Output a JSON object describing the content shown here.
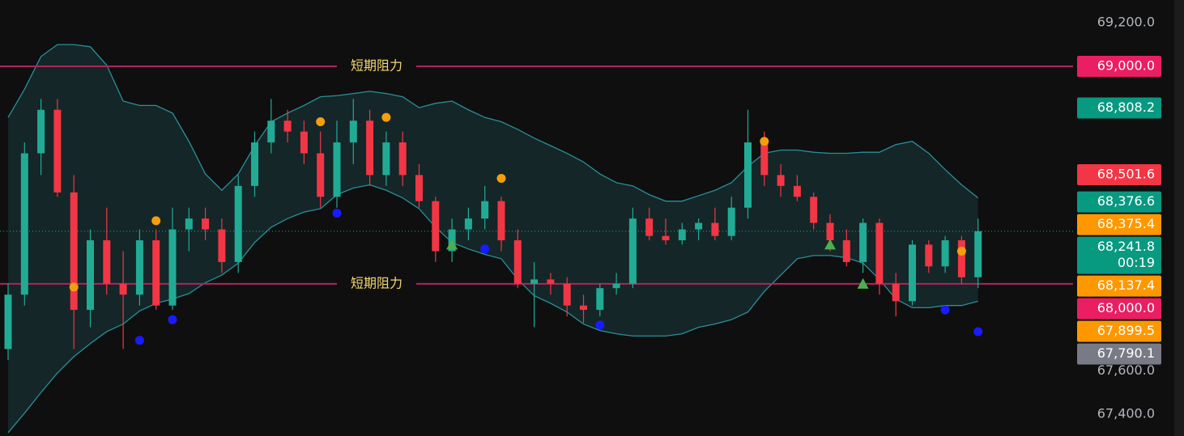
{
  "chart_data": {
    "type": "candlestick",
    "ylim": [
      67300,
      69305
    ],
    "yticks": [
      {
        "value": 69200,
        "label": "69,200.0"
      },
      {
        "value": 67600,
        "label": "67,600.0"
      },
      {
        "value": 67400,
        "label": "67,400.0"
      }
    ],
    "up_color": "#22ab94",
    "down_color": "#f23645",
    "open": [
      67700,
      67950,
      68600,
      68800,
      68420,
      67880,
      68200,
      68000,
      67950,
      68200,
      67900,
      68250,
      68300,
      68250,
      68100,
      68450,
      68650,
      68750,
      68700,
      68600,
      68400,
      68650,
      68750,
      68500,
      68650,
      68500,
      68380,
      68150,
      68250,
      68300,
      68380,
      68200,
      68000,
      68020,
      68000,
      67900,
      67880,
      67980,
      68000,
      68300,
      68220,
      68200,
      68250,
      68280,
      68220,
      68350,
      68650,
      68500,
      68450,
      68400,
      68280,
      68200,
      68100,
      68280,
      68000,
      67920,
      68180,
      68080,
      68200,
      68030
    ],
    "high": [
      68000,
      68650,
      68850,
      68850,
      68500,
      68250,
      68350,
      68150,
      68250,
      68250,
      68350,
      68350,
      68350,
      68300,
      68500,
      68700,
      68850,
      68800,
      68750,
      68700,
      68750,
      68850,
      68800,
      68700,
      68700,
      68550,
      68400,
      68300,
      68350,
      68450,
      68400,
      68250,
      68100,
      68050,
      68030,
      67950,
      68000,
      68050,
      68350,
      68350,
      68300,
      68280,
      68300,
      68350,
      68400,
      68800,
      68700,
      68550,
      68500,
      68420,
      68320,
      68250,
      68300,
      68300,
      68050,
      68200,
      68200,
      68220,
      68220,
      68300
    ],
    "low": [
      67650,
      67900,
      68500,
      68400,
      67700,
      67800,
      67950,
      67700,
      67900,
      67880,
      67880,
      68150,
      68200,
      68050,
      68050,
      68400,
      68600,
      68650,
      68550,
      68350,
      68350,
      68550,
      68450,
      68450,
      68450,
      68350,
      68100,
      68100,
      68200,
      68250,
      68150,
      67980,
      67800,
      67950,
      67850,
      67820,
      67850,
      67950,
      67980,
      68200,
      68180,
      68180,
      68200,
      68200,
      68200,
      68300,
      68450,
      68400,
      68380,
      68250,
      68150,
      68080,
      68050,
      67950,
      67850,
      67900,
      68050,
      68050,
      68000,
      67980
    ],
    "close": [
      67950,
      68600,
      68800,
      68420,
      67880,
      68200,
      68000,
      67950,
      68200,
      67900,
      68250,
      68300,
      68250,
      68100,
      68450,
      68650,
      68750,
      68700,
      68600,
      68400,
      68650,
      68750,
      68500,
      68650,
      68500,
      68380,
      68150,
      68250,
      68300,
      68380,
      68200,
      68000,
      68020,
      68000,
      67900,
      67880,
      67980,
      68000,
      68300,
      68220,
      68200,
      68250,
      68280,
      68220,
      68350,
      68650,
      68500,
      68450,
      68400,
      68280,
      68200,
      68100,
      68280,
      68000,
      67920,
      68180,
      68080,
      68200,
      68030,
      68241.8
    ],
    "bands": {
      "color": "#2a8f99",
      "fill": "rgba(42,143,153,0.18)",
      "upper": [
        68765,
        68895,
        69045,
        69100,
        69100,
        69090,
        69005,
        68840,
        68820,
        68820,
        68785,
        68655,
        68505,
        68430,
        68505,
        68635,
        68745,
        68785,
        68820,
        68860,
        68865,
        68875,
        68885,
        68875,
        68860,
        68810,
        68830,
        68840,
        68800,
        68765,
        68745,
        68710,
        68670,
        68635,
        68600,
        68560,
        68505,
        68465,
        68450,
        68410,
        68380,
        68380,
        68405,
        68430,
        68465,
        68540,
        68600,
        68615,
        68615,
        68605,
        68600,
        68600,
        68605,
        68605,
        68640,
        68655,
        68600,
        68525,
        68455,
        68395
      ],
      "lower": [
        67315,
        67405,
        67500,
        67590,
        67665,
        67725,
        67780,
        67815,
        67875,
        67910,
        67930,
        67955,
        68005,
        68040,
        68095,
        68190,
        68260,
        68300,
        68330,
        68345,
        68410,
        68440,
        68455,
        68430,
        68395,
        68345,
        68260,
        68190,
        68160,
        68135,
        68115,
        68020,
        67945,
        67910,
        67870,
        67815,
        67785,
        67770,
        67760,
        67760,
        67760,
        67770,
        67800,
        67815,
        67835,
        67870,
        67965,
        68040,
        68115,
        68130,
        68130,
        68120,
        68095,
        68020,
        67930,
        67890,
        67890,
        67900,
        67900,
        67920
      ]
    },
    "markers": [
      {
        "index": 4,
        "value": 67985,
        "color": "#f59e0b",
        "shape": "dot"
      },
      {
        "index": 9,
        "value": 68290,
        "color": "#f59e0b",
        "shape": "dot"
      },
      {
        "index": 19,
        "value": 68745,
        "color": "#f59e0b",
        "shape": "dot"
      },
      {
        "index": 23,
        "value": 68765,
        "color": "#f59e0b",
        "shape": "dot"
      },
      {
        "index": 30,
        "value": 68485,
        "color": "#f59e0b",
        "shape": "dot"
      },
      {
        "index": 46,
        "value": 68655,
        "color": "#f59e0b",
        "shape": "dot"
      },
      {
        "index": 58,
        "value": 68150,
        "color": "#f59e0b",
        "shape": "dot"
      },
      {
        "index": 8,
        "value": 67740,
        "color": "#1a1aff",
        "shape": "dot"
      },
      {
        "index": 10,
        "value": 67835,
        "color": "#1a1aff",
        "shape": "dot"
      },
      {
        "index": 20,
        "value": 68325,
        "color": "#1a1aff",
        "shape": "dot"
      },
      {
        "index": 29,
        "value": 68160,
        "color": "#1a1aff",
        "shape": "dot"
      },
      {
        "index": 36,
        "value": 67810,
        "color": "#1a1aff",
        "shape": "dot"
      },
      {
        "index": 57,
        "value": 67880,
        "color": "#1a1aff",
        "shape": "dot"
      },
      {
        "index": 59,
        "value": 67780,
        "color": "#1a1aff",
        "shape": "dot"
      },
      {
        "index": 27,
        "value": 68180,
        "color": "#4caf50",
        "shape": "triangle"
      },
      {
        "index": 50,
        "value": 68180,
        "color": "#4caf50",
        "shape": "triangle"
      },
      {
        "index": 52,
        "value": 68000,
        "color": "#4caf50",
        "shape": "triangle"
      }
    ],
    "hlines": [
      {
        "value": 69000,
        "label": "短期阻力",
        "color": "#b0245e"
      },
      {
        "value": 68000,
        "label": "短期阻力",
        "color": "#b0245e"
      }
    ],
    "price_labels": [
      {
        "value": 69000,
        "label": "69,000.0",
        "color": "#e91e63"
      },
      {
        "value": 68808.2,
        "label": "68,808.2",
        "color": "#089981"
      },
      {
        "value": 68501.6,
        "label": "68,501.6",
        "color": "#f23645"
      },
      {
        "value": 68376.6,
        "label": "68,376.6",
        "color": "#089981"
      },
      {
        "value": 68375.4,
        "label": "68,375.4",
        "color": "#ff9800"
      },
      {
        "value": 68241.8,
        "label": "68,241.8",
        "color": "#089981",
        "countdown": "00:19"
      },
      {
        "value": 68137.4,
        "label": "68,137.4",
        "color": "#ff9800"
      },
      {
        "value": 68000,
        "label": "68,000.0",
        "color": "#e91e63"
      },
      {
        "value": 67899.5,
        "label": "67,899.5",
        "color": "#ff9800"
      },
      {
        "value": 67790.1,
        "label": "67,790.1",
        "color": "#787b86"
      }
    ]
  }
}
